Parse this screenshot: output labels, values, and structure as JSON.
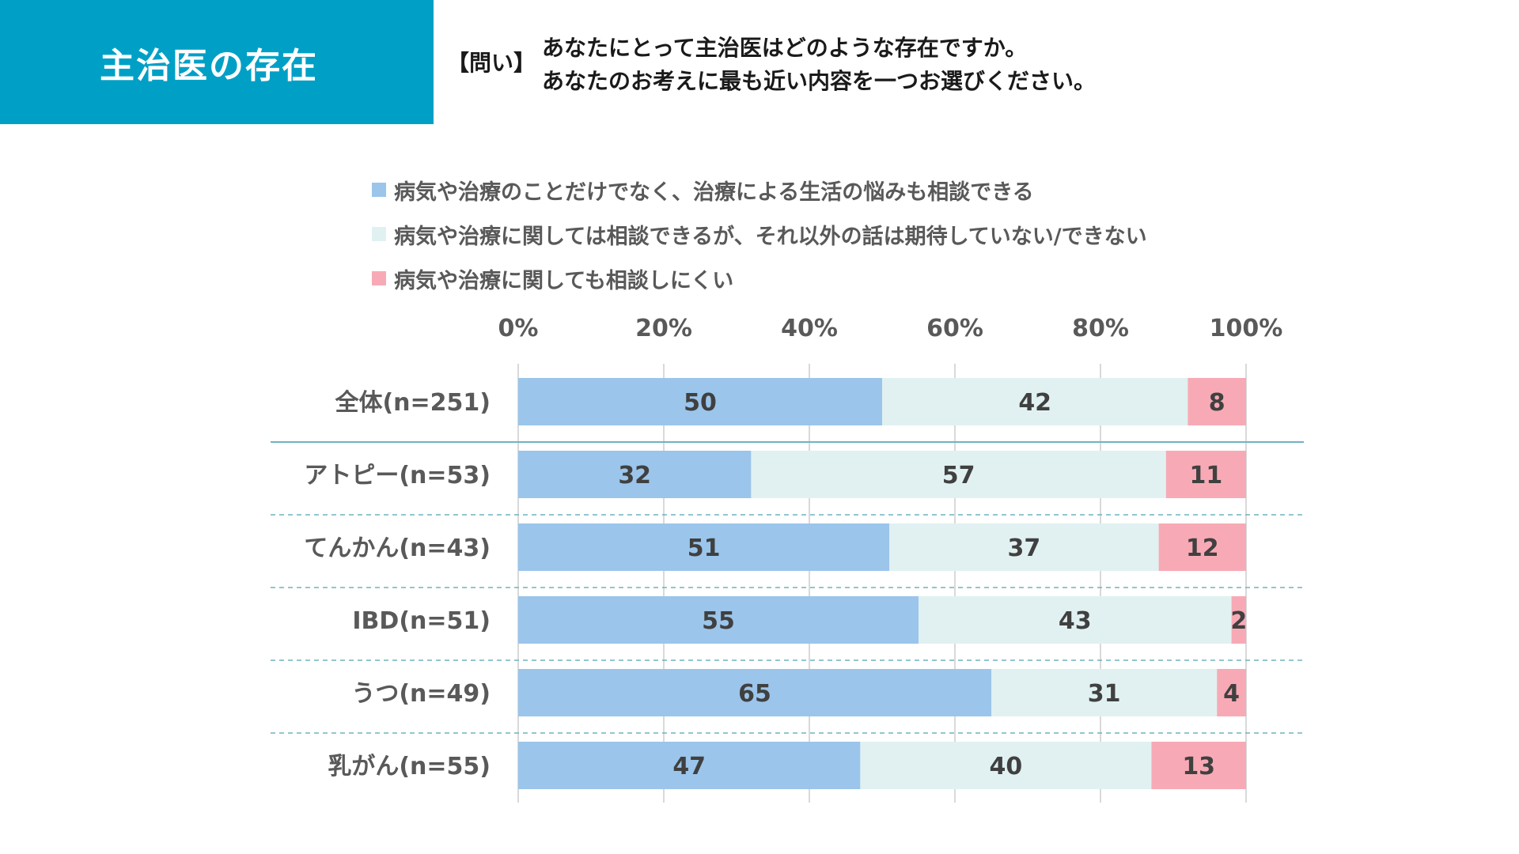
{
  "header": {
    "title": "主治医の存在",
    "question_label": "【問い】",
    "question_line1": "あなたにとって主治医はどのような存在ですか。",
    "question_line2": "あなたのお考えに最も近い内容を一つお選びください。"
  },
  "colors": {
    "header_bg": "#00A0C6",
    "series": [
      "#9BC5EB",
      "#E1F1F1",
      "#F7AAB5"
    ],
    "grid": "#D9D9D9",
    "separator": "#6FB3BF"
  },
  "chart_data": {
    "type": "bar",
    "orientation": "horizontal",
    "stacked": true,
    "percent_scale": true,
    "categories": [
      "全体(n=251)",
      "アトピー(n=53)",
      "てんかん(n=43)",
      "IBD(n=51)",
      "うつ(n=49)",
      "乳がん(n=55)"
    ],
    "series": [
      {
        "name": "病気や治療のことだけでなく、治療による生活の悩みも相談できる",
        "values": [
          50,
          32,
          51,
          55,
          65,
          47
        ]
      },
      {
        "name": "病気や治療に関しては相談できるが、それ以外の話は期待していない/できない",
        "values": [
          42,
          57,
          37,
          43,
          31,
          40
        ]
      },
      {
        "name": "病気や治療に関しても相談しにくい",
        "values": [
          8,
          11,
          12,
          2,
          4,
          13
        ]
      }
    ],
    "xlim": [
      0,
      100
    ],
    "x_ticks": [
      "0%",
      "20%",
      "40%",
      "60%",
      "80%",
      "100%"
    ],
    "x_tick_values": [
      0,
      20,
      40,
      60,
      80,
      100
    ],
    "legend_position": "top",
    "axis_position": "top",
    "data_labels": true
  }
}
